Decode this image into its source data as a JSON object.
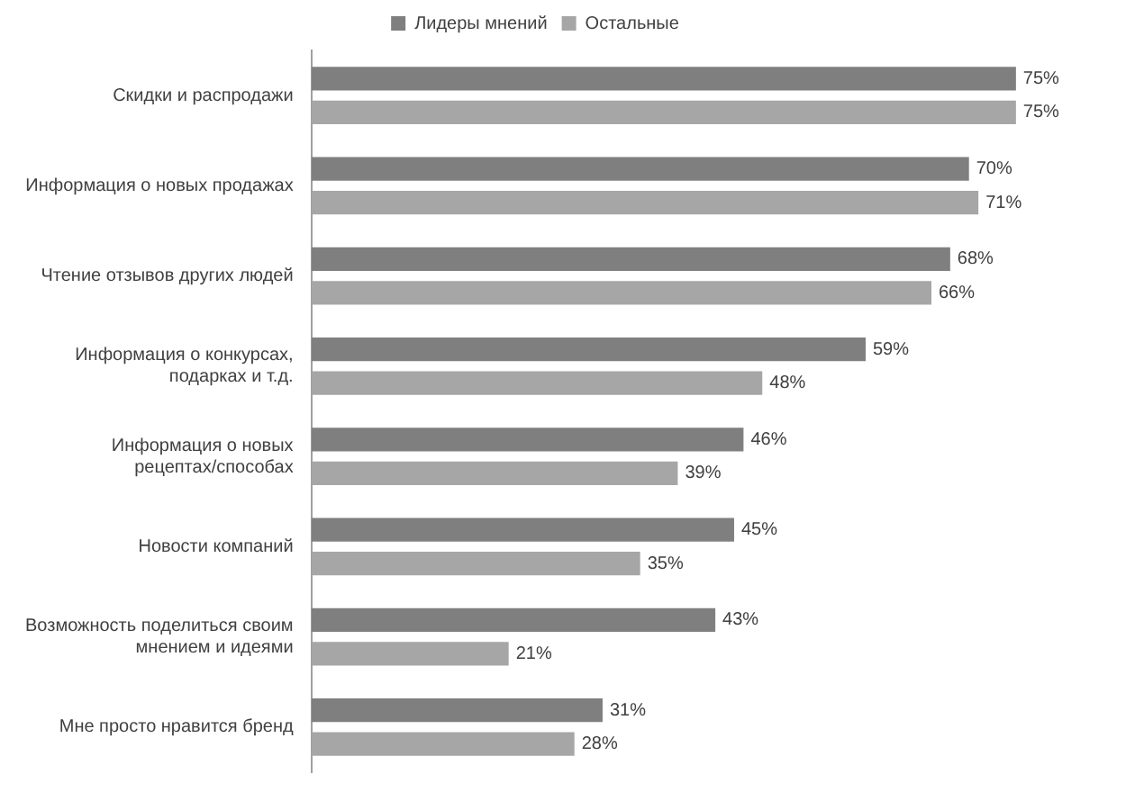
{
  "chart_data": {
    "type": "bar",
    "orientation": "horizontal",
    "legend": "top",
    "grid": false,
    "categories": [
      "Скидки и распродажи",
      "Информация о новых продажах",
      "Чтение отзывов других людей",
      "Информация о конкурсах, подарках и т.д.",
      "Информация о новых рецептах/способах",
      "Новости компаний",
      "Возможность поделиться своим мнением и идеями",
      "Мне просто нравится бренд"
    ],
    "series": [
      {
        "name": "Лидеры мнений",
        "color": "#7f7f7f",
        "values": [
          75,
          70,
          68,
          59,
          46,
          45,
          43,
          31
        ],
        "value_labels": [
          "75%",
          "70%",
          "68%",
          "59%",
          "46%",
          "45%",
          "43%",
          "31%"
        ]
      },
      {
        "name": "Остальные",
        "color": "#a6a6a6",
        "values": [
          75,
          71,
          66,
          48,
          39,
          35,
          21,
          28
        ],
        "value_labels": [
          "75%",
          "71%",
          "66%",
          "48%",
          "39%",
          "35%",
          "21%",
          "28%"
        ]
      }
    ]
  }
}
